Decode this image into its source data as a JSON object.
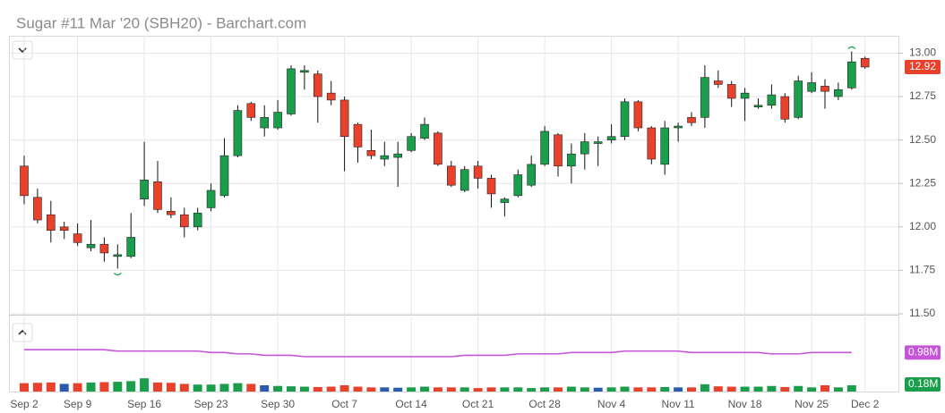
{
  "chart_data": [
    {
      "type": "candlestick",
      "title": "Sugar #11 Mar '20 (SBH20) - Barchart.com",
      "categories": [
        "Sep 2",
        null,
        null,
        null,
        "Sep 9",
        null,
        null,
        null,
        null,
        "Sep 16",
        null,
        null,
        null,
        null,
        "Sep 23",
        null,
        null,
        null,
        null,
        "Sep 30",
        null,
        null,
        null,
        null,
        "Oct 7",
        null,
        null,
        null,
        null,
        "Oct 14",
        null,
        null,
        null,
        null,
        "Oct 21",
        null,
        null,
        null,
        null,
        "Oct 28",
        null,
        null,
        null,
        null,
        "Nov 4",
        null,
        null,
        null,
        null,
        "Nov 11",
        null,
        null,
        null,
        null,
        "Nov 18",
        null,
        null,
        null,
        null,
        "Nov 25",
        null,
        null,
        null,
        "Dec 2"
      ],
      "open": [
        12.35,
        12.17,
        12.07,
        12.0,
        11.96,
        11.88,
        11.9,
        11.83,
        11.83,
        12.16,
        12.26,
        12.09,
        12.07,
        12.0,
        12.11,
        12.18,
        12.41,
        12.71,
        12.57,
        12.57,
        12.65,
        12.89,
        12.88,
        12.77,
        12.73,
        12.59,
        12.44,
        12.39,
        12.4,
        12.44,
        12.51,
        12.54,
        12.35,
        12.21,
        12.35,
        12.28,
        12.14,
        12.18,
        12.24,
        12.36,
        12.53,
        12.35,
        12.42,
        12.48,
        12.5,
        12.52,
        12.72,
        12.57,
        12.36,
        12.57,
        12.63,
        12.63,
        12.84,
        12.82,
        12.74,
        12.69,
        12.7,
        12.75,
        12.63,
        12.78,
        12.81,
        12.75,
        12.8,
        12.97
      ],
      "high": [
        12.41,
        12.22,
        12.15,
        12.03,
        12.02,
        12.04,
        11.94,
        11.9,
        12.08,
        12.49,
        12.38,
        12.17,
        12.11,
        12.11,
        12.25,
        12.51,
        12.7,
        12.72,
        12.7,
        12.73,
        12.93,
        12.93,
        12.9,
        12.84,
        12.75,
        12.6,
        12.56,
        12.49,
        12.49,
        12.54,
        12.63,
        12.55,
        12.38,
        12.35,
        12.38,
        12.3,
        12.17,
        12.33,
        12.41,
        12.58,
        12.54,
        12.48,
        12.54,
        12.52,
        12.59,
        12.74,
        12.73,
        12.58,
        12.61,
        12.6,
        12.66,
        12.93,
        12.9,
        12.84,
        12.8,
        12.74,
        12.82,
        12.77,
        12.87,
        12.89,
        12.85,
        12.83,
        13.01,
        12.98
      ],
      "low": [
        12.13,
        12.02,
        11.91,
        11.93,
        11.89,
        11.86,
        11.8,
        11.76,
        11.82,
        12.12,
        12.08,
        12.05,
        11.94,
        11.98,
        12.09,
        12.17,
        12.4,
        12.61,
        12.52,
        12.56,
        12.64,
        12.79,
        12.6,
        12.7,
        12.32,
        12.37,
        12.39,
        12.35,
        12.23,
        12.43,
        12.5,
        12.35,
        12.23,
        12.2,
        12.22,
        12.11,
        12.06,
        12.17,
        12.23,
        12.35,
        12.29,
        12.25,
        12.33,
        12.35,
        12.48,
        12.5,
        12.55,
        12.36,
        12.3,
        12.49,
        12.58,
        12.57,
        12.8,
        12.69,
        12.61,
        12.68,
        12.68,
        12.6,
        12.62,
        12.77,
        12.68,
        12.73,
        12.79,
        12.91
      ],
      "close": [
        12.18,
        12.04,
        11.98,
        11.98,
        11.91,
        11.9,
        11.85,
        11.84,
        11.94,
        12.27,
        12.1,
        12.07,
        12.0,
        12.08,
        12.21,
        12.41,
        12.67,
        12.63,
        12.63,
        12.66,
        12.91,
        12.9,
        12.75,
        12.73,
        12.52,
        12.46,
        12.41,
        12.41,
        12.42,
        12.52,
        12.59,
        12.36,
        12.24,
        12.33,
        12.28,
        12.19,
        12.16,
        12.3,
        12.36,
        12.55,
        12.35,
        12.42,
        12.49,
        12.49,
        12.52,
        12.72,
        12.57,
        12.39,
        12.57,
        12.58,
        12.6,
        12.86,
        12.82,
        12.74,
        12.77,
        12.7,
        12.76,
        12.62,
        12.84,
        12.83,
        12.78,
        12.79,
        12.95,
        12.92
      ],
      "ylim": [
        11.5,
        13.1
      ],
      "yticks": [
        {
          "value": 13,
          "label": "13.00"
        },
        12.75,
        {
          "value": 12.5,
          "label": "12.50"
        },
        12.25,
        {
          "value": 12,
          "label": "12.00"
        },
        11.75,
        {
          "value": 11.5,
          "label": "11.50"
        }
      ],
      "up_color": "#1b9e4b",
      "down_color": "#e8412c",
      "grid": true
    },
    {
      "type": "bar",
      "ylim": [
        0,
        2
      ],
      "y2lim": [
        0.7,
        1.2
      ],
      "series": [
        {
          "values": [
            0.24,
            0.25,
            0.26,
            0.22,
            0.24,
            0.26,
            0.27,
            0.28,
            0.3,
            0.38,
            0.26,
            0.25,
            0.22,
            0.2,
            0.2,
            0.22,
            0.24,
            0.22,
            0.18,
            0.16,
            0.15,
            0.14,
            0.13,
            0.14,
            0.18,
            0.14,
            0.12,
            0.12,
            0.11,
            0.12,
            0.14,
            0.12,
            0.12,
            0.12,
            0.1,
            0.12,
            0.12,
            0.12,
            0.1,
            0.12,
            0.12,
            0.14,
            0.12,
            0.11,
            0.12,
            0.14,
            0.12,
            0.12,
            0.13,
            0.12,
            0.12,
            0.21,
            0.15,
            0.14,
            0.14,
            0.14,
            0.16,
            0.13,
            0.16,
            0.12,
            0.18,
            0.12,
            0.18,
            null
          ],
          "colors": [
            "#e8412c",
            "#e8412c",
            "#e8412c",
            "#2a5caa",
            "#e8412c",
            "#1b9e4b",
            "#e8412c",
            "#1b9e4b",
            "#1b9e4b",
            "#1b9e4b",
            "#e8412c",
            "#e8412c",
            "#e8412c",
            "#1b9e4b",
            "#1b9e4b",
            "#1b9e4b",
            "#1b9e4b",
            "#e8412c",
            "#2a5caa",
            "#1b9e4b",
            "#1b9e4b",
            "#1b9e4b",
            "#e8412c",
            "#e8412c",
            "#e8412c",
            "#e8412c",
            "#e8412c",
            "#2a5caa",
            "#2a5caa",
            "#1b9e4b",
            "#1b9e4b",
            "#e8412c",
            "#e8412c",
            "#1b9e4b",
            "#e8412c",
            "#e8412c",
            "#1b9e4b",
            "#1b9e4b",
            "#1b9e4b",
            "#1b9e4b",
            "#e8412c",
            "#1b9e4b",
            "#1b9e4b",
            "#2a5caa",
            "#1b9e4b",
            "#1b9e4b",
            "#e8412c",
            "#e8412c",
            "#1b9e4b",
            "#2a5caa",
            "#e8412c",
            "#1b9e4b",
            "#e8412c",
            "#e8412c",
            "#1b9e4b",
            "#1b9e4b",
            "#1b9e4b",
            "#e8412c",
            "#1b9e4b",
            "#1b9e4b",
            "#e8412c",
            "#1b9e4b",
            "#1b9e4b",
            "#e8412c"
          ],
          "value_labels": [
            null,
            null,
            null,
            null,
            null,
            null,
            null,
            null,
            null,
            null,
            null,
            null,
            null,
            null,
            null,
            null,
            null,
            null,
            null,
            null,
            null,
            null,
            null,
            null,
            null,
            null,
            null,
            null,
            null,
            null,
            null,
            null,
            null,
            null,
            null,
            null,
            null,
            null,
            null,
            null,
            null,
            null,
            null,
            null,
            null,
            null,
            null,
            null,
            null,
            null,
            null,
            null,
            null,
            null,
            null,
            null,
            null,
            null,
            null,
            null,
            null,
            null,
            "0.18M",
            null
          ]
        },
        {
          "type": "line",
          "axis": "y2",
          "color": "#c455d6",
          "values": [
            1.0,
            1.0,
            1.0,
            1.0,
            1.0,
            1.0,
            1.0,
            0.99,
            0.99,
            0.99,
            0.99,
            0.99,
            0.99,
            0.99,
            0.98,
            0.98,
            0.97,
            0.97,
            0.96,
            0.96,
            0.96,
            0.95,
            0.95,
            0.95,
            0.95,
            0.95,
            0.95,
            0.95,
            0.95,
            0.95,
            0.95,
            0.95,
            0.95,
            0.96,
            0.96,
            0.96,
            0.96,
            0.97,
            0.97,
            0.97,
            0.97,
            0.98,
            0.98,
            0.98,
            0.98,
            0.99,
            0.99,
            0.99,
            0.99,
            0.99,
            0.98,
            0.98,
            0.98,
            0.98,
            0.98,
            0.98,
            0.97,
            0.97,
            0.97,
            0.98,
            0.98,
            0.98,
            0.98,
            null
          ],
          "value_labels": [
            null,
            null,
            null,
            null,
            null,
            null,
            null,
            null,
            null,
            null,
            null,
            null,
            null,
            null,
            null,
            null,
            null,
            null,
            null,
            null,
            null,
            null,
            null,
            null,
            null,
            null,
            null,
            null,
            null,
            null,
            null,
            null,
            null,
            null,
            null,
            null,
            null,
            null,
            null,
            null,
            null,
            null,
            null,
            null,
            null,
            null,
            null,
            null,
            null,
            null,
            null,
            null,
            null,
            null,
            null,
            null,
            null,
            null,
            null,
            null,
            null,
            null,
            "0.98M",
            null
          ]
        }
      ]
    }
  ]
}
